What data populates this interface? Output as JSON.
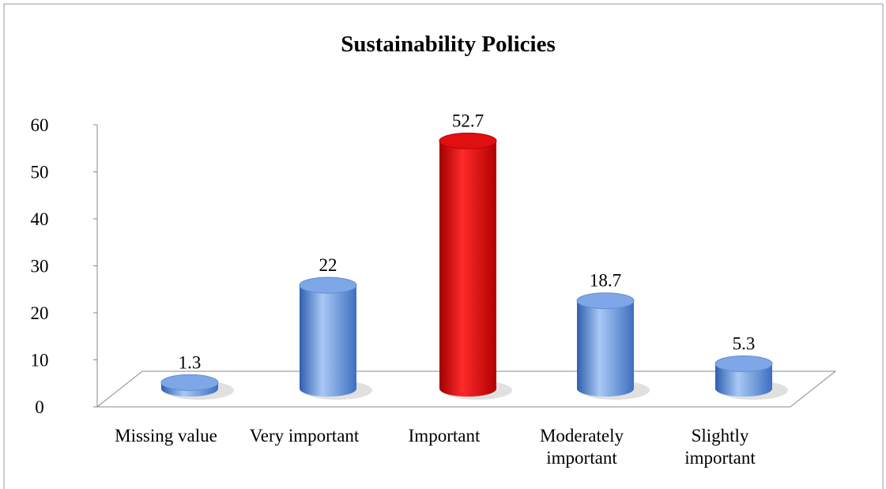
{
  "chart_data": {
    "type": "bar",
    "title": "Sustainability Policies",
    "categories": [
      "Missing value",
      "Very important",
      "Important",
      "Moderately important",
      "Slightly important"
    ],
    "values": [
      1.3,
      22,
      52.7,
      18.7,
      5.3
    ],
    "colors": [
      "#5b8fd9",
      "#5b8fd9",
      "#e00000",
      "#5b8fd9",
      "#5b8fd9"
    ],
    "ylim": [
      0,
      60
    ],
    "yticks": [
      0,
      10,
      20,
      30,
      40,
      50,
      60
    ]
  }
}
